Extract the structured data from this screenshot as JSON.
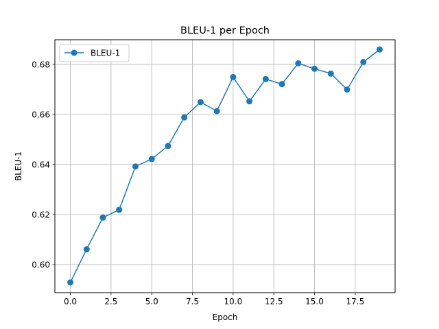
{
  "chart_data": {
    "type": "line",
    "title": "BLEU-1 per Epoch",
    "xlabel": "Epoch",
    "ylabel": "BLEU-1",
    "xlim": [
      -0.95,
      19.95
    ],
    "ylim": [
      0.5888,
      0.6898
    ],
    "xticks": [
      0.0,
      2.5,
      5.0,
      7.5,
      10.0,
      12.5,
      15.0,
      17.5
    ],
    "xtick_labels": [
      "0.0",
      "2.5",
      "5.0",
      "7.5",
      "10.0",
      "12.5",
      "15.0",
      "17.5"
    ],
    "yticks": [
      0.6,
      0.62,
      0.64,
      0.66,
      0.68
    ],
    "ytick_labels": [
      "0.60",
      "0.62",
      "0.64",
      "0.66",
      "0.68"
    ],
    "grid": true,
    "legend_position": "top-left",
    "series": [
      {
        "name": "BLEU-1",
        "color": "#1f77b4",
        "marker": "circle",
        "x": [
          0,
          1,
          2,
          3,
          4,
          5,
          6,
          7,
          8,
          9,
          10,
          11,
          12,
          13,
          14,
          15,
          16,
          17,
          18,
          19
        ],
        "y": [
          0.5929,
          0.6061,
          0.6188,
          0.6219,
          0.6392,
          0.6422,
          0.6474,
          0.6588,
          0.6649,
          0.6613,
          0.6749,
          0.6652,
          0.6741,
          0.6721,
          0.6804,
          0.6782,
          0.6763,
          0.6699,
          0.6809,
          0.6859
        ]
      }
    ]
  }
}
